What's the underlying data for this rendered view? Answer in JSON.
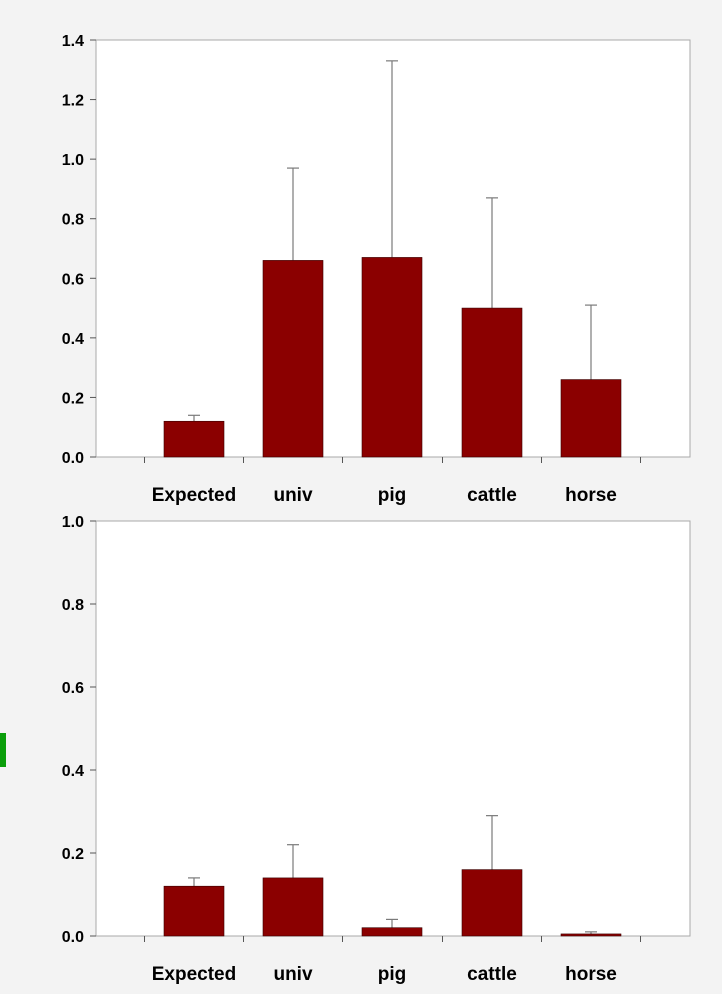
{
  "chart_data": [
    {
      "type": "bar",
      "title": "",
      "xlabel": "",
      "ylabel": "",
      "categories": [
        "Expected",
        "univ",
        "pig",
        "cattle",
        "horse"
      ],
      "values": [
        0.12,
        0.66,
        0.67,
        0.5,
        0.26
      ],
      "errors": [
        0.02,
        0.31,
        0.66,
        0.37,
        0.25
      ],
      "ylim": [
        0,
        1.4
      ],
      "yticks": [
        "0.0",
        "0.2",
        "0.4",
        "0.6",
        "0.8",
        "1.0",
        "1.2",
        "1.4"
      ],
      "grid": false,
      "colors": {
        "bar": "#8b0000",
        "error_bar": "#7a7a7a"
      }
    },
    {
      "type": "bar",
      "title": "",
      "xlabel": "",
      "ylabel": "",
      "categories": [
        "Expected",
        "univ",
        "pig",
        "cattle",
        "horse"
      ],
      "values": [
        0.12,
        0.14,
        0.02,
        0.16,
        0.005
      ],
      "errors": [
        0.02,
        0.08,
        0.02,
        0.13,
        0.005
      ],
      "ylim": [
        0,
        1.0
      ],
      "yticks": [
        "0.0",
        "0.2",
        "0.4",
        "0.6",
        "0.8",
        "1.0"
      ],
      "grid": false,
      "colors": {
        "bar": "#8b0000",
        "error_bar": "#7a7a7a"
      }
    }
  ],
  "colors": {
    "background": "#f3f3f3",
    "plot_area": "#ffffff",
    "accent_mark": "#0a9e0a"
  }
}
